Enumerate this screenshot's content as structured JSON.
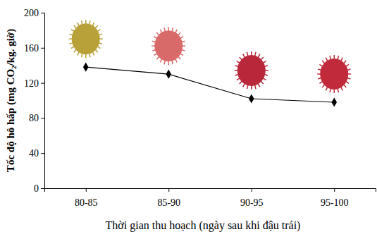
{
  "chart_data": {
    "type": "line",
    "x_label": "Thời gian thu hoạch (ngày sau khi đậu trái)",
    "y_label": "Tốc độ hô hấp (mg CO₂/kg. giờ)",
    "categories": [
      "80-85",
      "85-90",
      "90-95",
      "95-100"
    ],
    "values": [
      138,
      130,
      102,
      98
    ],
    "color": "#000000",
    "marker": "diamond",
    "line_style": "solid",
    "ylim": [
      0,
      200
    ],
    "yticks": [
      0,
      40,
      80,
      120,
      160,
      200
    ],
    "grid": false
  }
}
